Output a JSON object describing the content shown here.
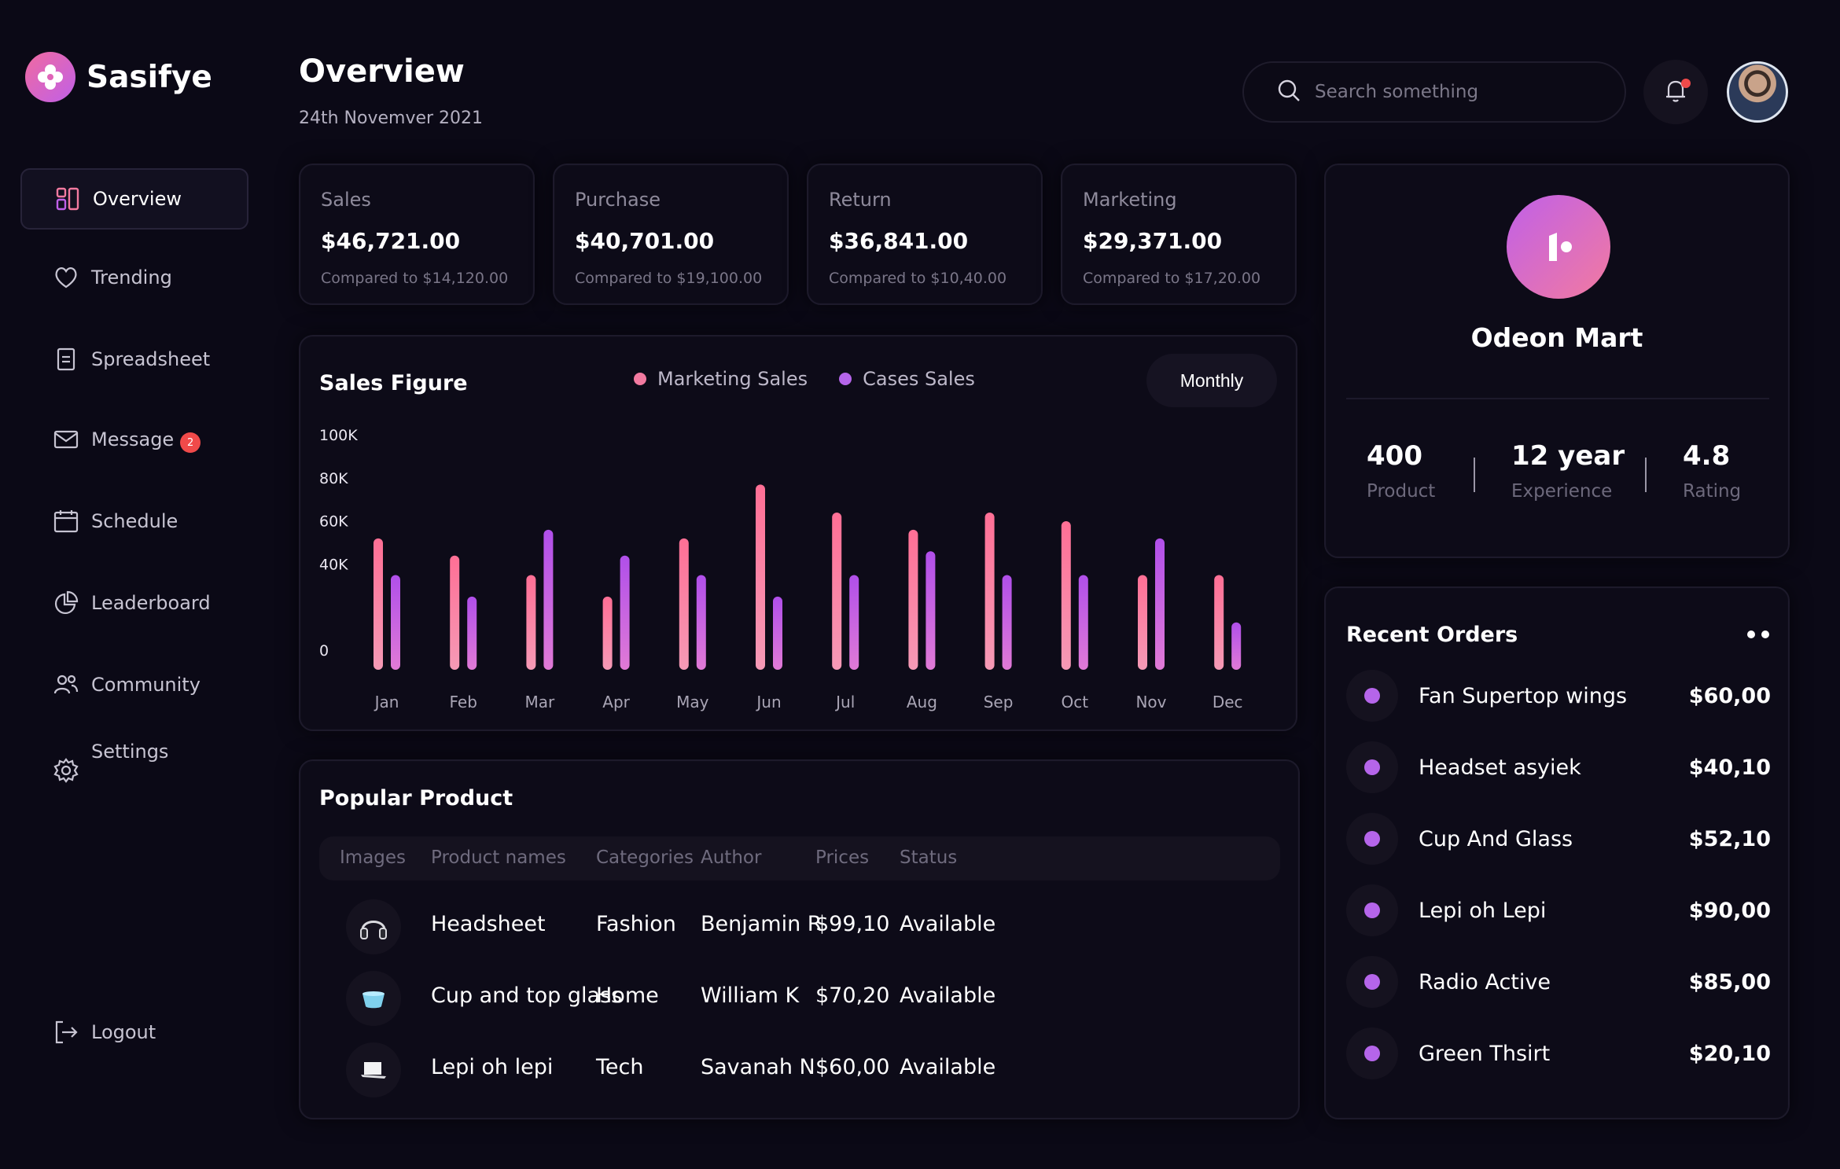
{
  "app": {
    "name": "Sasifye"
  },
  "colors": {
    "accent_pink": "#f27aa0",
    "accent_purple": "#b565ea",
    "background": "#0b0916",
    "badge_red": "#f04a4a"
  },
  "sidebar": {
    "items": [
      {
        "label": "Overview",
        "icon": "overview-icon",
        "active": true
      },
      {
        "label": "Trending",
        "icon": "heart-icon"
      },
      {
        "label": "Spreadsheet",
        "icon": "document-icon"
      },
      {
        "label": "Message",
        "icon": "mail-icon",
        "badge": "2"
      },
      {
        "label": "Schedule",
        "icon": "calendar-icon"
      },
      {
        "label": "Leaderboard",
        "icon": "pie-chart-icon"
      },
      {
        "label": "Community",
        "icon": "users-icon"
      },
      {
        "label": "Settings",
        "icon": "gear-icon"
      }
    ],
    "logout": "Logout"
  },
  "header": {
    "title": "Overview",
    "date": "24th Novemver 2021",
    "search_placeholder": "Search something"
  },
  "stats": [
    {
      "label": "Sales",
      "value": "$46,721.00",
      "compare": "Compared to $14,120.00"
    },
    {
      "label": "Purchase",
      "value": "$40,701.00",
      "compare": "Compared to $19,100.00"
    },
    {
      "label": "Return",
      "value": "$36,841.00",
      "compare": "Compared to $10,40.00"
    },
    {
      "label": "Marketing",
      "value": "$29,371.00",
      "compare": "Compared to $17,20.00"
    }
  ],
  "sales_figure": {
    "title": "Sales Figure",
    "period_button": "Monthly"
  },
  "chart_data": {
    "type": "bar",
    "title": "Sales Figure",
    "categories": [
      "Jan",
      "Feb",
      "Mar",
      "Apr",
      "May",
      "Jun",
      "Jul",
      "Aug",
      "Sep",
      "Oct",
      "Nov",
      "Dec"
    ],
    "series": [
      {
        "name": "Marketing Sales",
        "color": "#f27aa0",
        "values": [
          61,
          53,
          44,
          34,
          61,
          86,
          73,
          65,
          73,
          69,
          44,
          44
        ]
      },
      {
        "name": "Cases Sales",
        "color": "#b565ea",
        "values": [
          44,
          34,
          65,
          53,
          44,
          34,
          44,
          55,
          44,
          44,
          61,
          22
        ]
      }
    ],
    "yticks": [
      "100K",
      "80K",
      "60K",
      "40K",
      "0"
    ],
    "ylim": [
      0,
      100
    ],
    "grid": false,
    "legend": "top"
  },
  "popular_product": {
    "title": "Popular Product",
    "columns": [
      "Images",
      "Product names",
      "Categories",
      "Author",
      "Prices",
      "Status"
    ],
    "rows": [
      {
        "image": "headphones-icon",
        "name": "Headsheet",
        "category": "Fashion",
        "author": "Benjamin R",
        "price": "$99,10",
        "status": "Available"
      },
      {
        "image": "cup-icon",
        "name": "Cup and top glass",
        "category": "Home",
        "author": "William K",
        "price": "$70,20",
        "status": "Available"
      },
      {
        "image": "laptop-icon",
        "name": "Lepi oh lepi",
        "category": "Tech",
        "author": "Savanah N",
        "price": "$60,00",
        "status": "Available"
      }
    ]
  },
  "profile": {
    "name": "Odeon Mart",
    "metrics": [
      {
        "value": "400",
        "label": "Product"
      },
      {
        "value": "12 year",
        "label": "Experience"
      },
      {
        "value": "4.8",
        "label": "Rating"
      }
    ]
  },
  "recent_orders": {
    "title": "Recent Orders",
    "items": [
      {
        "name": "Fan Supertop wings",
        "price": "$60,00"
      },
      {
        "name": "Headset asyiek",
        "price": "$40,10"
      },
      {
        "name": "Cup And Glass",
        "price": "$52,10"
      },
      {
        "name": "Lepi oh Lepi",
        "price": "$90,00"
      },
      {
        "name": "Radio Active",
        "price": "$85,00"
      },
      {
        "name": "Green Thsirt",
        "price": "$20,10"
      }
    ]
  }
}
